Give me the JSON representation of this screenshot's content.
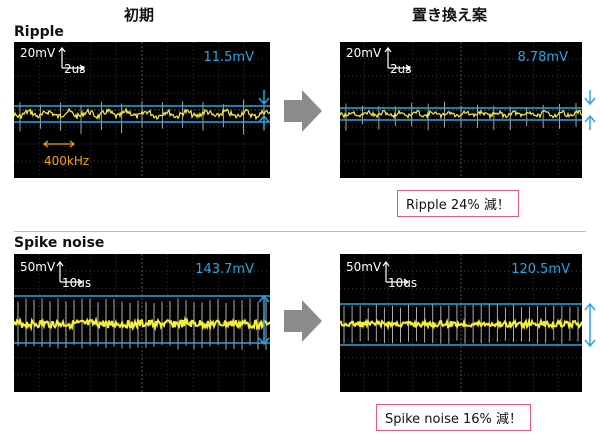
{
  "headers": {
    "before": "初期",
    "after": "置き換え案"
  },
  "sections": {
    "ripple": {
      "label": "Ripple",
      "before": {
        "vdiv": "20mV",
        "tdiv": "2us",
        "measurement": "11.5mV",
        "frequency": "400kHz"
      },
      "after": {
        "vdiv": "20mV",
        "tdiv": "2us",
        "measurement": "8.78mV"
      },
      "result": "Ripple 24% 減！"
    },
    "spike": {
      "label": "Spike noise",
      "before": {
        "vdiv": "50mV",
        "tdiv": "10us",
        "measurement": "143.7mV"
      },
      "after": {
        "vdiv": "50mV",
        "tdiv": "10us",
        "measurement": "120.5mV"
      },
      "result": "Spike noise 16% 減！"
    }
  },
  "colors": {
    "trace": "#f5ef3a",
    "measure": "#2aa5e0",
    "freq_marker": "#f4a40a",
    "arrow": "#8c8c8c",
    "note_border": "#e05c7a"
  }
}
